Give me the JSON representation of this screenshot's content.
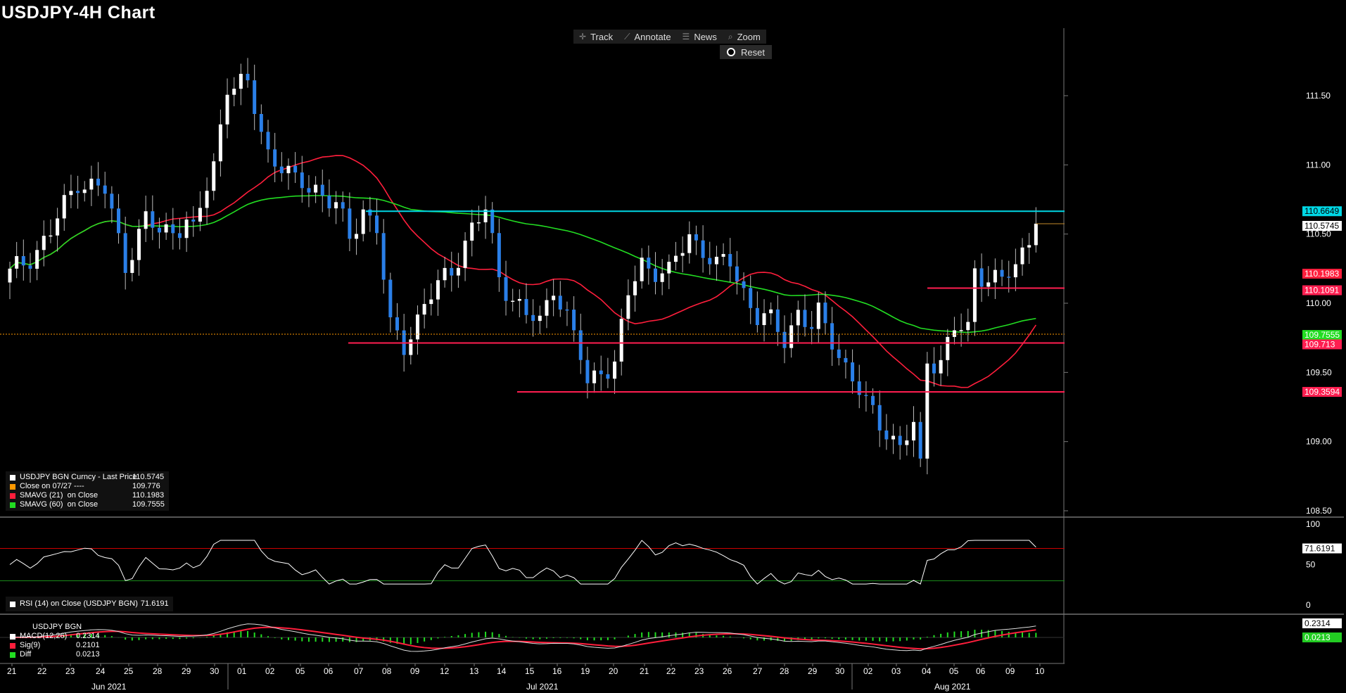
{
  "title": "USDJPY-4H Chart",
  "toolbar": {
    "track": "Track",
    "annotate": "Annotate",
    "news": "News",
    "zoom": "Zoom",
    "reset": "Reset"
  },
  "colors": {
    "background": "#000000",
    "bull": "#ffffff",
    "bear": "#2a7fe8",
    "sma21": "#ff1e3c",
    "sma60": "#22dd22",
    "resistance": "#00d8e6",
    "support": "#ff1e50",
    "close_line": "#ff9900"
  },
  "chart_data": [
    {
      "type": "candlestick",
      "title": "USDJPY-4H Chart",
      "ylim": [
        108.45,
        111.95
      ],
      "y_ticks": [
        "111.50",
        "111.00",
        "110.50",
        "110.00",
        "109.50",
        "109.00",
        "108.50"
      ],
      "x_ticks": [
        "21",
        "22",
        "23",
        "24",
        "25",
        "28",
        "29",
        "30",
        "01",
        "02",
        "05",
        "06",
        "07",
        "08",
        "09",
        "12",
        "13",
        "14",
        "15",
        "16",
        "19",
        "20",
        "21",
        "22",
        "23",
        "26",
        "27",
        "28",
        "29",
        "30",
        "02",
        "03",
        "04",
        "05",
        "06",
        "09",
        "10"
      ],
      "x_months": [
        "Jun 2021",
        "Jul 2021",
        "Aug 2021"
      ],
      "series": [
        {
          "name": "USDJPY BGN Curncy - Last Price",
          "last": "110.5745"
        },
        {
          "name": "Close on 07/27 ----",
          "last": "109.776"
        },
        {
          "name": "SMAVG (21)  on Close",
          "last": "110.1983"
        },
        {
          "name": "SMAVG (60)  on Close",
          "last": "109.7555"
        }
      ],
      "price_path": [
        [
          0,
          110.2
        ],
        [
          6,
          110.5
        ],
        [
          10,
          110.9
        ],
        [
          14,
          110.8
        ],
        [
          17,
          110.3
        ],
        [
          20,
          110.6
        ],
        [
          22,
          110.5
        ],
        [
          26,
          110.6
        ],
        [
          27,
          110.5
        ],
        [
          30,
          111.0
        ],
        [
          32,
          111.6
        ],
        [
          35,
          111.55
        ],
        [
          38,
          111.1
        ],
        [
          40,
          111.0
        ],
        [
          42,
          110.85
        ],
        [
          45,
          110.85
        ],
        [
          48,
          110.7
        ],
        [
          50,
          110.45
        ],
        [
          52,
          110.7
        ],
        [
          54,
          110.55
        ],
        [
          56,
          109.8
        ],
        [
          58,
          109.7
        ],
        [
          61,
          110.0
        ],
        [
          63,
          110.1
        ],
        [
          65,
          110.25
        ],
        [
          68,
          110.55
        ],
        [
          70,
          110.65
        ],
        [
          72,
          110.2
        ],
        [
          74,
          110.05
        ],
        [
          76,
          109.9
        ],
        [
          78,
          109.85
        ],
        [
          80,
          110.15
        ],
        [
          82,
          109.9
        ],
        [
          84,
          109.6
        ],
        [
          85,
          109.4
        ],
        [
          87,
          109.55
        ],
        [
          89,
          109.55
        ],
        [
          91,
          110.05
        ],
        [
          93,
          110.3
        ],
        [
          95,
          110.25
        ],
        [
          97,
          110.2
        ],
        [
          100,
          110.5
        ],
        [
          102,
          110.4
        ],
        [
          104,
          110.25
        ],
        [
          106,
          110.3
        ],
        [
          108,
          110.1
        ],
        [
          110,
          109.9
        ],
        [
          112,
          109.85
        ],
        [
          114,
          109.75
        ],
        [
          116,
          109.95
        ],
        [
          118,
          109.8
        ],
        [
          119,
          109.9
        ],
        [
          121,
          109.75
        ],
        [
          123,
          109.55
        ],
        [
          126,
          109.25
        ],
        [
          129,
          109.1
        ],
        [
          131,
          108.95
        ],
        [
          133,
          109.1
        ],
        [
          134,
          108.8
        ],
        [
          135,
          109.6
        ],
        [
          137,
          109.6
        ],
        [
          139,
          109.8
        ],
        [
          141,
          109.8
        ],
        [
          142,
          110.25
        ],
        [
          144,
          110.2
        ],
        [
          146,
          110.15
        ],
        [
          148,
          110.25
        ],
        [
          150,
          110.5
        ],
        [
          151,
          110.575
        ]
      ],
      "price_levels": [
        {
          "label": "110.6649",
          "kind": "resistance"
        },
        {
          "label": "110.5745",
          "kind": "last"
        },
        {
          "label": "110.1983",
          "kind": "sma21"
        },
        {
          "label": "110.1091",
          "kind": "support"
        },
        {
          "label": "109.7555",
          "kind": "sma60"
        },
        {
          "label": "109.713",
          "kind": "support"
        },
        {
          "label": "109.3594",
          "kind": "support"
        }
      ]
    },
    {
      "type": "line",
      "name": "RSI (14)  on Close (USDJPY BGN)",
      "last": "71.6191",
      "y_ticks": [
        "100",
        "50",
        "0"
      ],
      "ylim": [
        -5,
        105
      ],
      "bands": [
        70,
        30
      ]
    },
    {
      "type": "bar",
      "name": "USDJPY BGN",
      "series": [
        {
          "name": "MACD(12,26)",
          "last": "0.2314"
        },
        {
          "name": "Sig(9)",
          "last": "0.2101"
        },
        {
          "name": "Diff",
          "last": "0.0213"
        }
      ]
    }
  ]
}
